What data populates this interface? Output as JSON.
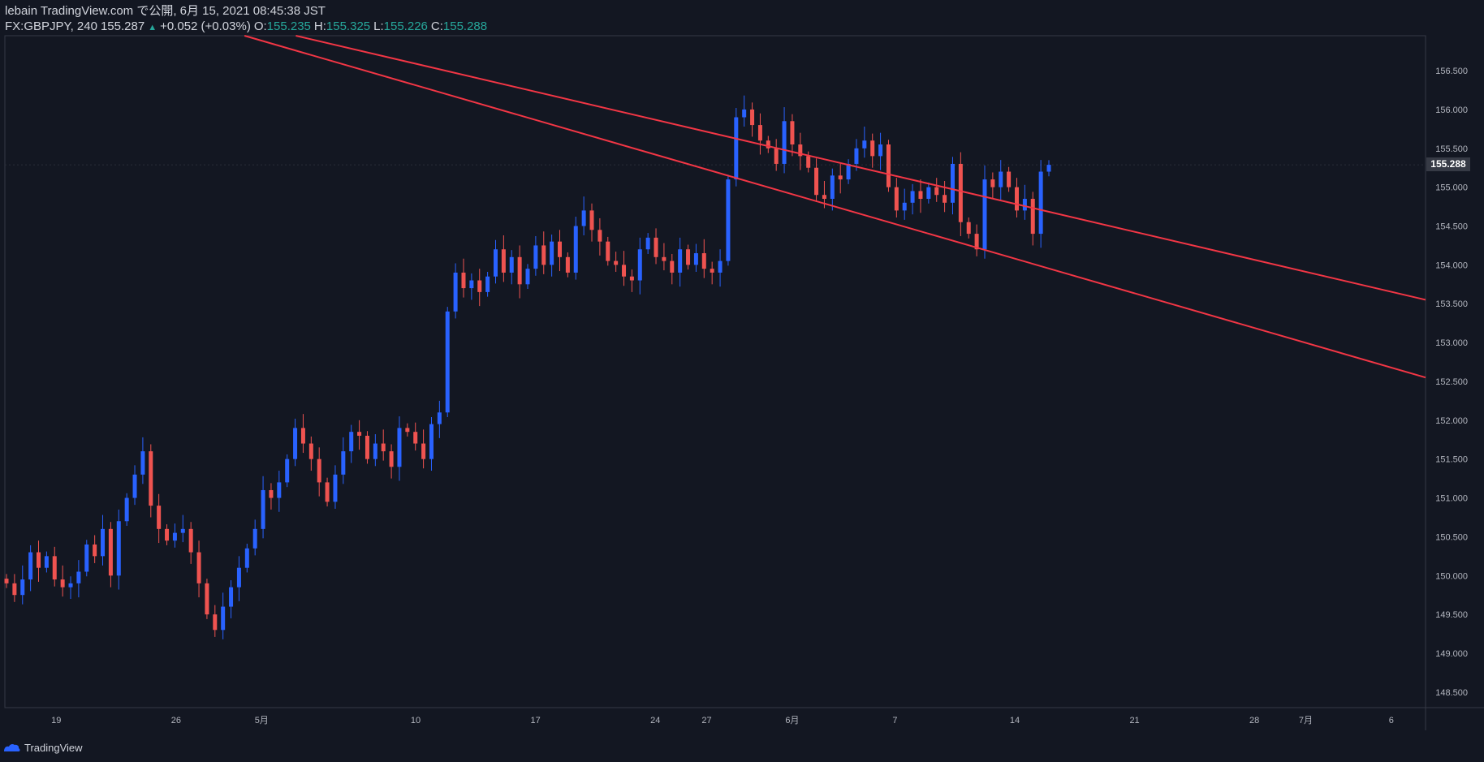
{
  "header": {
    "publish_line": "lebain TradingView.com で公開, 6月 15, 2021 08:45:38 JST",
    "symbol": "FX:GBPJPY, 240",
    "last": "155.287",
    "change": "+0.052 (+0.03%)",
    "open_label": "O:",
    "open_value": "155.235",
    "high_label": "H:",
    "high_value": "155.325",
    "low_label": "L:",
    "low_value": "155.226",
    "close_label": "C:",
    "close_value": "155.288"
  },
  "current_price_label": "155.288",
  "footer": {
    "brand": "TradingView"
  },
  "colors": {
    "background": "#131722",
    "up": "#2962ff",
    "down": "#ef5350",
    "trendline": "#f23645",
    "axis_text": "#b2b5be"
  },
  "chart_data": {
    "type": "candlestick",
    "symbol": "GBPJPY",
    "timeframe": "240",
    "ylim": [
      148.3,
      156.95
    ],
    "y_ticks": [
      "148.500",
      "149.000",
      "149.500",
      "150.000",
      "150.500",
      "151.000",
      "151.500",
      "152.000",
      "152.500",
      "153.000",
      "153.500",
      "154.000",
      "154.500",
      "155.000",
      "155.500",
      "156.000",
      "156.500"
    ],
    "x_ticks": [
      "19",
      "26",
      "5月",
      "10",
      "17",
      "24",
      "27",
      "6月",
      "7",
      "14",
      "21",
      "28",
      "7月",
      "6"
    ],
    "current_price": 155.288,
    "closes": [
      149.9,
      149.75,
      149.95,
      150.3,
      150.1,
      150.25,
      149.95,
      149.85,
      149.9,
      150.05,
      150.4,
      150.25,
      150.6,
      150.0,
      150.7,
      151.0,
      151.3,
      151.6,
      150.9,
      150.6,
      150.45,
      150.55,
      150.6,
      150.3,
      149.9,
      149.5,
      149.3,
      149.6,
      149.85,
      150.1,
      150.35,
      150.6,
      151.1,
      151.0,
      151.2,
      151.5,
      151.9,
      151.7,
      151.5,
      151.2,
      150.95,
      151.3,
      151.6,
      151.85,
      151.8,
      151.5,
      151.7,
      151.6,
      151.4,
      151.9,
      151.85,
      151.7,
      151.5,
      151.95,
      152.1,
      153.4,
      153.9,
      153.7,
      153.8,
      153.65,
      153.85,
      154.2,
      153.9,
      154.1,
      153.75,
      153.95,
      154.25,
      154.0,
      154.3,
      154.1,
      153.9,
      154.5,
      154.7,
      154.45,
      154.3,
      154.05,
      154.0,
      153.85,
      153.8,
      154.2,
      154.35,
      154.1,
      154.05,
      153.9,
      154.2,
      154.0,
      154.15,
      153.95,
      153.9,
      154.05,
      155.1,
      155.9,
      156.0,
      155.8,
      155.6,
      155.5,
      155.3,
      155.85,
      155.55,
      155.4,
      155.25,
      154.9,
      154.85,
      155.15,
      155.1,
      155.3,
      155.5,
      155.6,
      155.4,
      155.55,
      155.0,
      154.7,
      154.8,
      154.95,
      154.85,
      155.0,
      154.9,
      154.8,
      155.3,
      154.55,
      154.4,
      154.2,
      155.1,
      155.0,
      155.2,
      155.0,
      154.7,
      154.85,
      154.4,
      155.2,
      155.288
    ],
    "trendlines": [
      {
        "from": [
          "2021-05-03",
          156.95
        ],
        "to": [
          "2021-07-08",
          153.55
        ]
      },
      {
        "from": [
          "2021-04-30",
          156.95
        ],
        "to": [
          "2021-07-08",
          152.55
        ]
      }
    ]
  }
}
